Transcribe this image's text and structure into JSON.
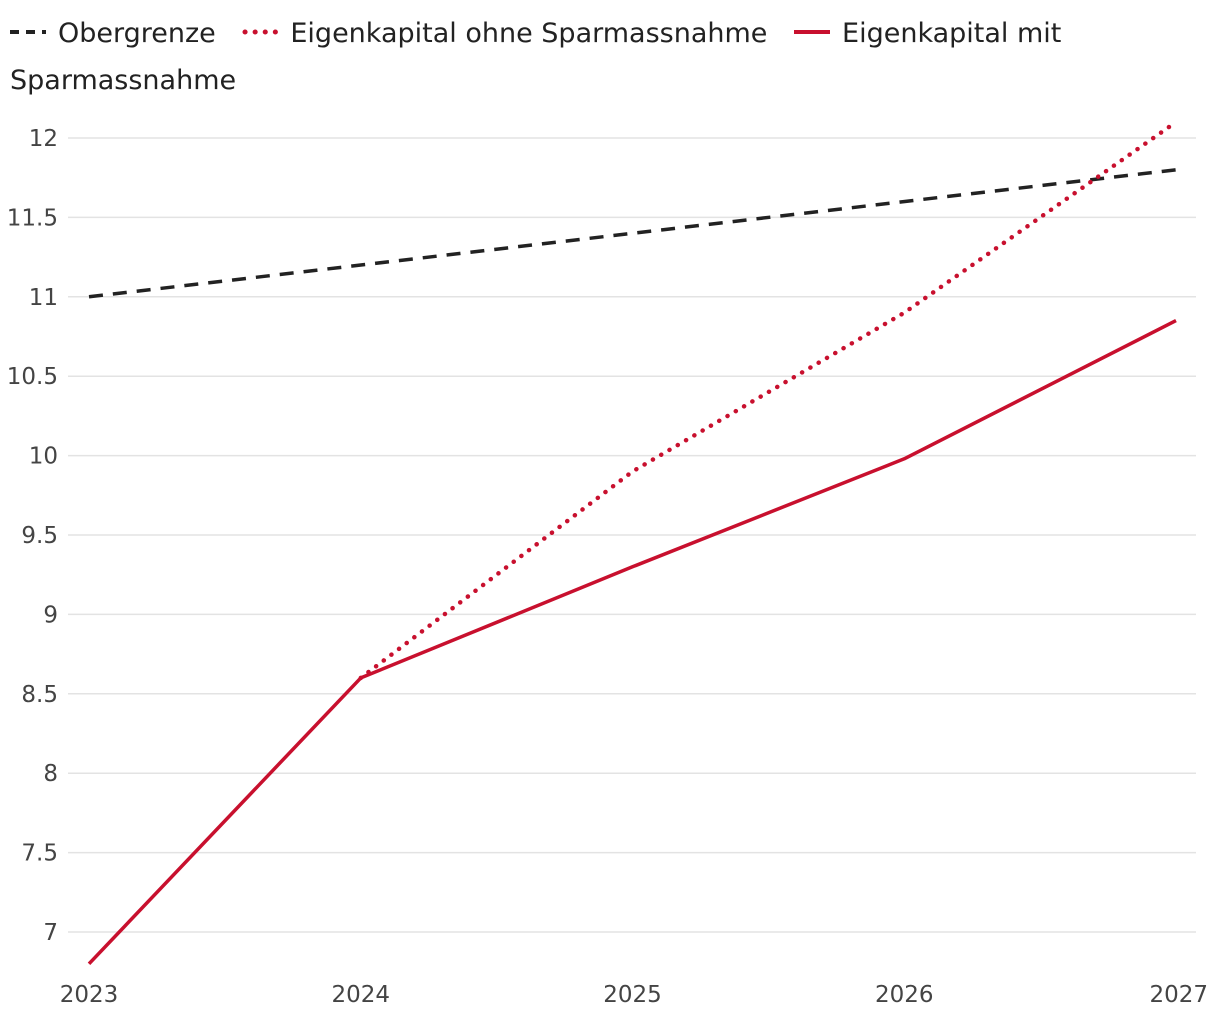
{
  "chart_data": {
    "type": "line",
    "title": "",
    "xlabel": "",
    "ylabel": "",
    "x": [
      "2023",
      "2024",
      "2025",
      "2026",
      "2027"
    ],
    "ylim": [
      6.8,
      12.1
    ],
    "yticks": [
      "7",
      "7.5",
      "8",
      "8.5",
      "9",
      "9.5",
      "10",
      "10.5",
      "11",
      "11.5",
      "12"
    ],
    "grid": "horizontal",
    "legend_position": "top",
    "series": [
      {
        "name": "Obergrenze",
        "style": "dashed",
        "color": "#222222",
        "x": [
          2023,
          2027
        ],
        "y": [
          11.0,
          11.8
        ]
      },
      {
        "name": "Eigenkapital ohne Sparmassnahme",
        "style": "dotted",
        "color": "#c8102e",
        "x": [
          2024,
          2025,
          2026,
          2027
        ],
        "y": [
          8.6,
          9.9,
          10.9,
          12.1
        ]
      },
      {
        "name": "Eigenkapital mit Sparmassnahme",
        "style": "solid",
        "color": "#c8102e",
        "x": [
          2023,
          2024,
          2025,
          2026,
          2027
        ],
        "y": [
          6.8,
          8.6,
          9.3,
          9.98,
          10.85
        ]
      }
    ]
  }
}
